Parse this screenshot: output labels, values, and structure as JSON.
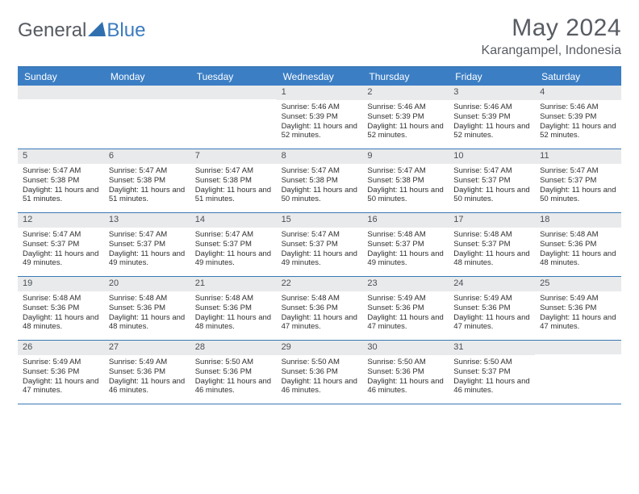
{
  "logo": {
    "text_left": "General",
    "text_right": "Blue",
    "tri_color": "#2f6fb0"
  },
  "header": {
    "month_title": "May 2024",
    "location": "Karangampel, Indonesia"
  },
  "colors": {
    "header_bg": "#3b7ec4",
    "header_text": "#ffffff",
    "rule": "#3a79b8",
    "daynum_bg": "#e9eaeb",
    "body_text": "#2f2f2f"
  },
  "day_names": [
    "Sunday",
    "Monday",
    "Tuesday",
    "Wednesday",
    "Thursday",
    "Friday",
    "Saturday"
  ],
  "weeks": [
    [
      null,
      null,
      null,
      {
        "n": "1",
        "sr": "5:46 AM",
        "ss": "5:39 PM",
        "dl": "11 hours and 52 minutes."
      },
      {
        "n": "2",
        "sr": "5:46 AM",
        "ss": "5:39 PM",
        "dl": "11 hours and 52 minutes."
      },
      {
        "n": "3",
        "sr": "5:46 AM",
        "ss": "5:39 PM",
        "dl": "11 hours and 52 minutes."
      },
      {
        "n": "4",
        "sr": "5:46 AM",
        "ss": "5:39 PM",
        "dl": "11 hours and 52 minutes."
      }
    ],
    [
      {
        "n": "5",
        "sr": "5:47 AM",
        "ss": "5:38 PM",
        "dl": "11 hours and 51 minutes."
      },
      {
        "n": "6",
        "sr": "5:47 AM",
        "ss": "5:38 PM",
        "dl": "11 hours and 51 minutes."
      },
      {
        "n": "7",
        "sr": "5:47 AM",
        "ss": "5:38 PM",
        "dl": "11 hours and 51 minutes."
      },
      {
        "n": "8",
        "sr": "5:47 AM",
        "ss": "5:38 PM",
        "dl": "11 hours and 50 minutes."
      },
      {
        "n": "9",
        "sr": "5:47 AM",
        "ss": "5:38 PM",
        "dl": "11 hours and 50 minutes."
      },
      {
        "n": "10",
        "sr": "5:47 AM",
        "ss": "5:37 PM",
        "dl": "11 hours and 50 minutes."
      },
      {
        "n": "11",
        "sr": "5:47 AM",
        "ss": "5:37 PM",
        "dl": "11 hours and 50 minutes."
      }
    ],
    [
      {
        "n": "12",
        "sr": "5:47 AM",
        "ss": "5:37 PM",
        "dl": "11 hours and 49 minutes."
      },
      {
        "n": "13",
        "sr": "5:47 AM",
        "ss": "5:37 PM",
        "dl": "11 hours and 49 minutes."
      },
      {
        "n": "14",
        "sr": "5:47 AM",
        "ss": "5:37 PM",
        "dl": "11 hours and 49 minutes."
      },
      {
        "n": "15",
        "sr": "5:47 AM",
        "ss": "5:37 PM",
        "dl": "11 hours and 49 minutes."
      },
      {
        "n": "16",
        "sr": "5:48 AM",
        "ss": "5:37 PM",
        "dl": "11 hours and 49 minutes."
      },
      {
        "n": "17",
        "sr": "5:48 AM",
        "ss": "5:37 PM",
        "dl": "11 hours and 48 minutes."
      },
      {
        "n": "18",
        "sr": "5:48 AM",
        "ss": "5:36 PM",
        "dl": "11 hours and 48 minutes."
      }
    ],
    [
      {
        "n": "19",
        "sr": "5:48 AM",
        "ss": "5:36 PM",
        "dl": "11 hours and 48 minutes."
      },
      {
        "n": "20",
        "sr": "5:48 AM",
        "ss": "5:36 PM",
        "dl": "11 hours and 48 minutes."
      },
      {
        "n": "21",
        "sr": "5:48 AM",
        "ss": "5:36 PM",
        "dl": "11 hours and 48 minutes."
      },
      {
        "n": "22",
        "sr": "5:48 AM",
        "ss": "5:36 PM",
        "dl": "11 hours and 47 minutes."
      },
      {
        "n": "23",
        "sr": "5:49 AM",
        "ss": "5:36 PM",
        "dl": "11 hours and 47 minutes."
      },
      {
        "n": "24",
        "sr": "5:49 AM",
        "ss": "5:36 PM",
        "dl": "11 hours and 47 minutes."
      },
      {
        "n": "25",
        "sr": "5:49 AM",
        "ss": "5:36 PM",
        "dl": "11 hours and 47 minutes."
      }
    ],
    [
      {
        "n": "26",
        "sr": "5:49 AM",
        "ss": "5:36 PM",
        "dl": "11 hours and 47 minutes."
      },
      {
        "n": "27",
        "sr": "5:49 AM",
        "ss": "5:36 PM",
        "dl": "11 hours and 46 minutes."
      },
      {
        "n": "28",
        "sr": "5:50 AM",
        "ss": "5:36 PM",
        "dl": "11 hours and 46 minutes."
      },
      {
        "n": "29",
        "sr": "5:50 AM",
        "ss": "5:36 PM",
        "dl": "11 hours and 46 minutes."
      },
      {
        "n": "30",
        "sr": "5:50 AM",
        "ss": "5:36 PM",
        "dl": "11 hours and 46 minutes."
      },
      {
        "n": "31",
        "sr": "5:50 AM",
        "ss": "5:37 PM",
        "dl": "11 hours and 46 minutes."
      },
      null
    ]
  ],
  "labels": {
    "sunrise": "Sunrise:",
    "sunset": "Sunset:",
    "daylight": "Daylight:"
  }
}
